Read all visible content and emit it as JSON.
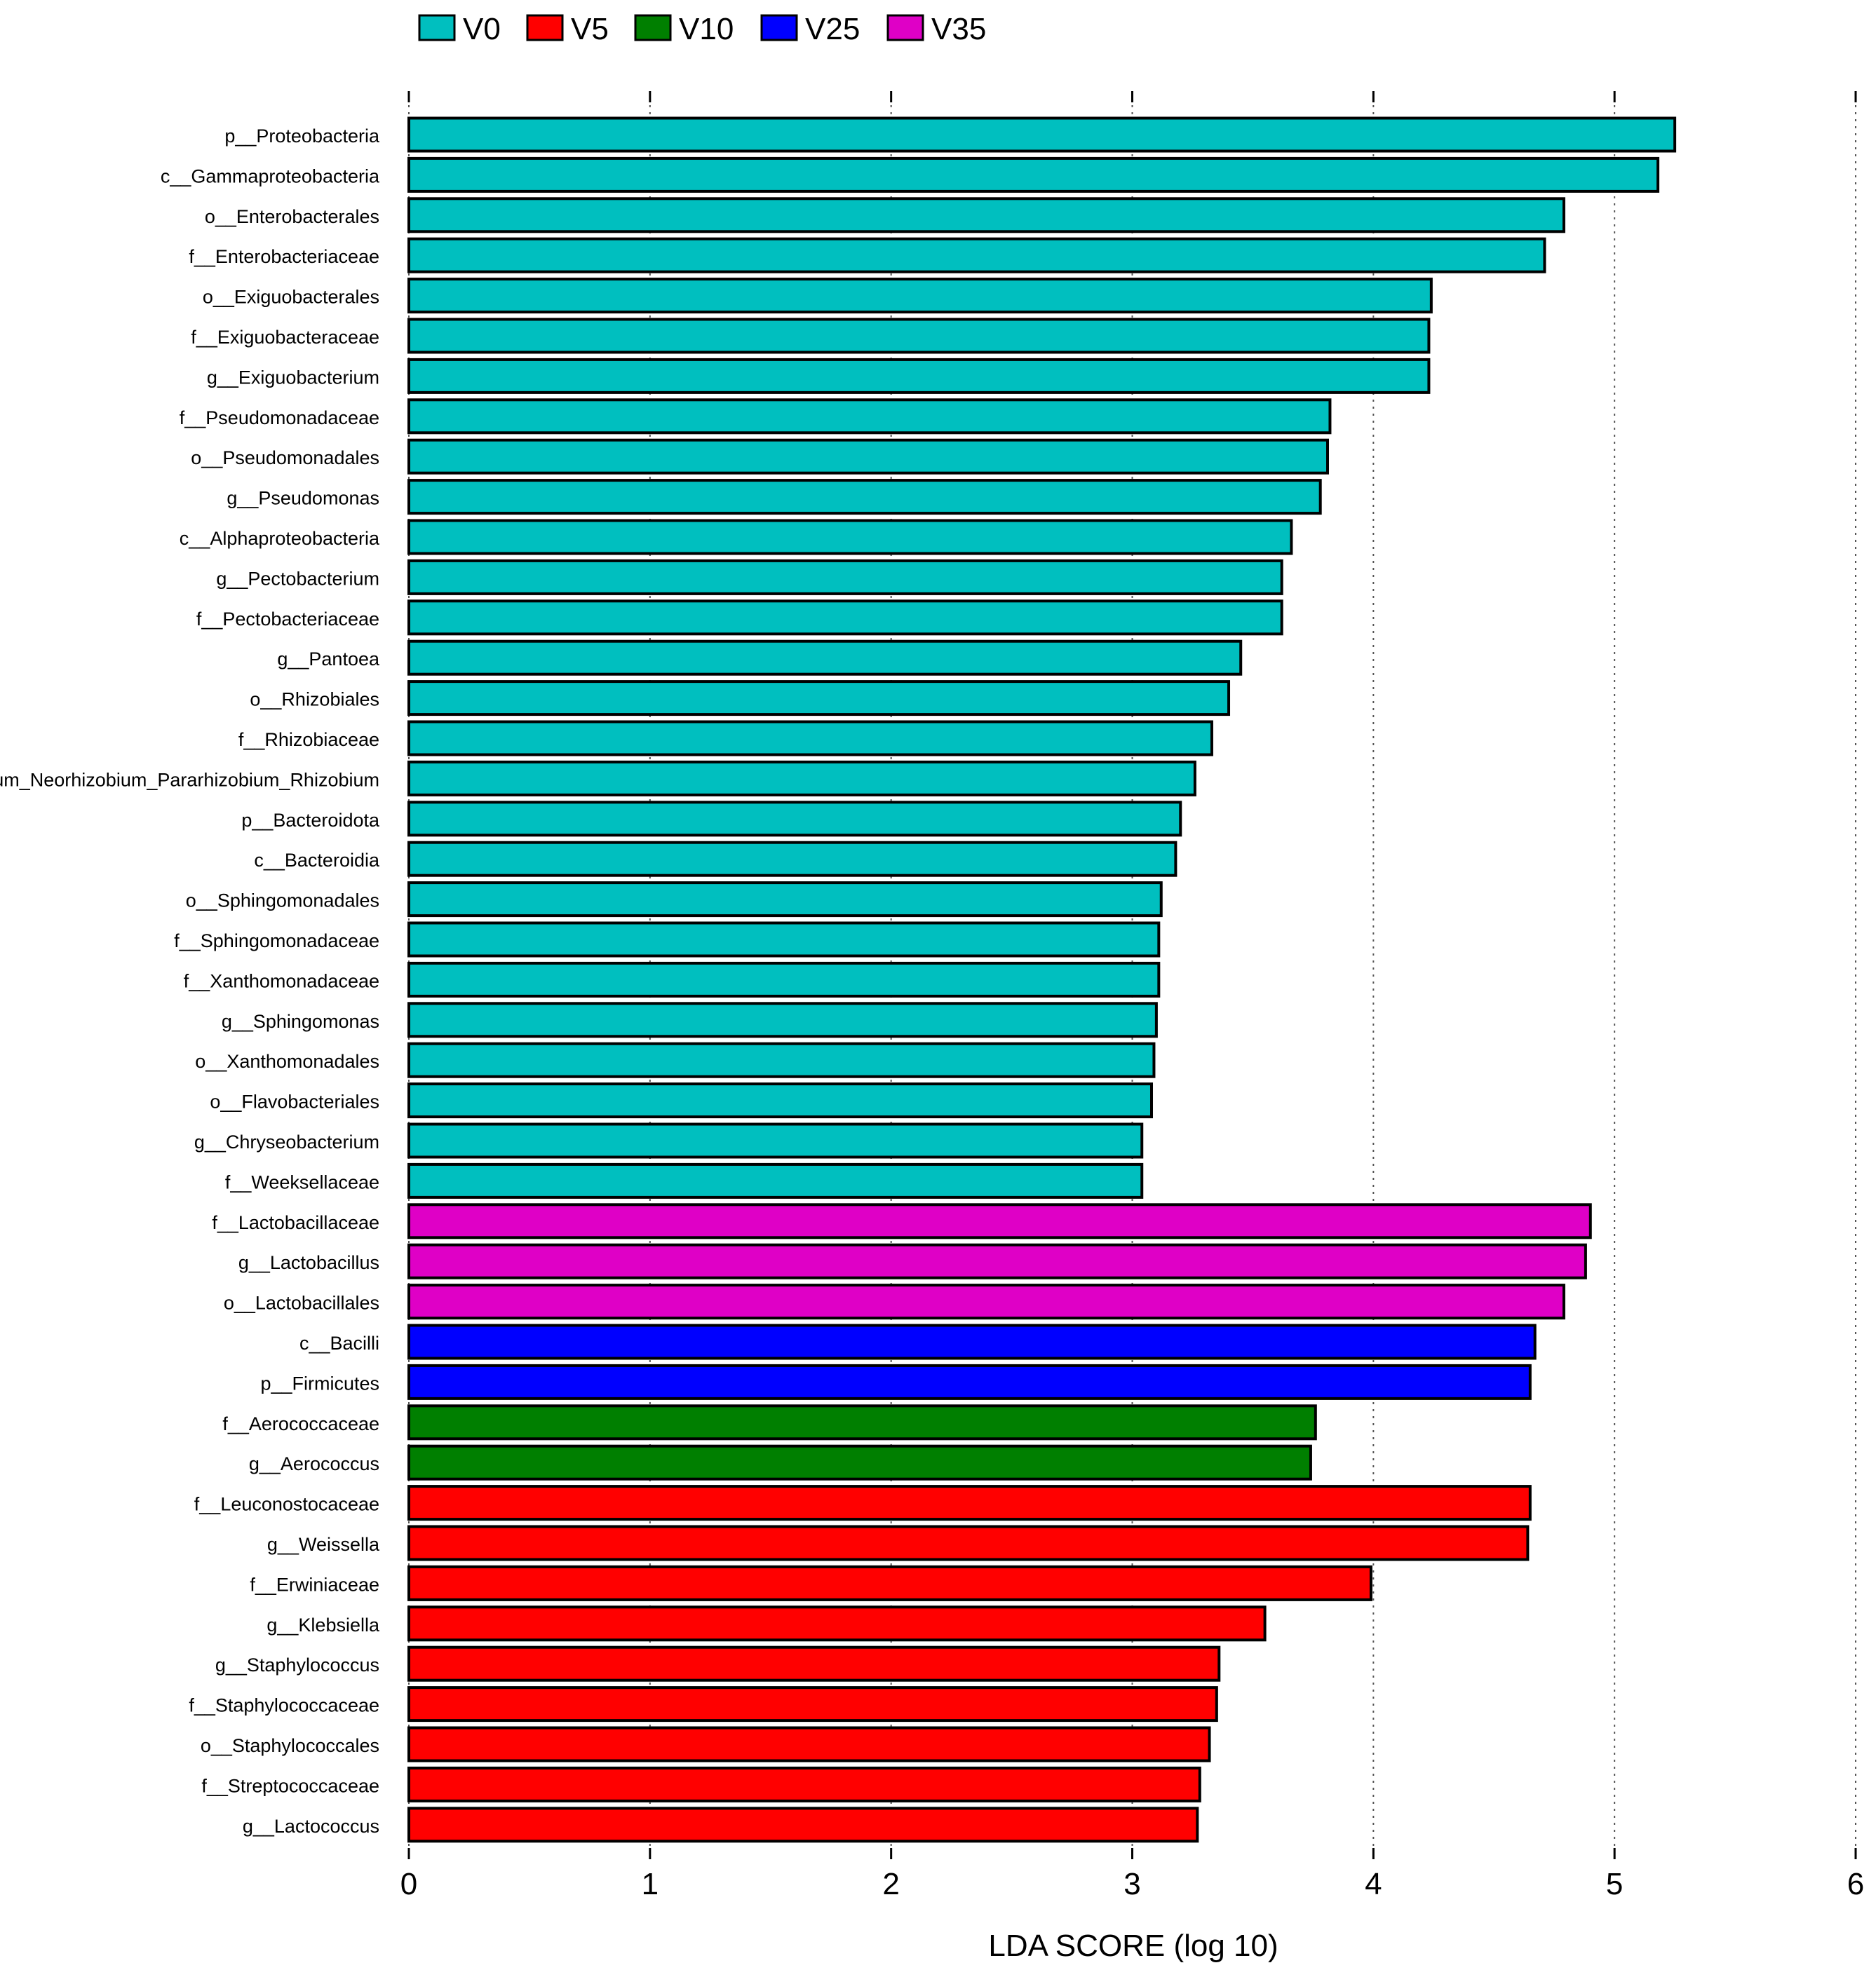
{
  "chart_data": {
    "type": "bar",
    "orientation": "horizontal",
    "xlabel": "LDA SCORE (log 10)",
    "xlim": [
      0,
      6
    ],
    "xticks": [
      0,
      1,
      2,
      3,
      4,
      5,
      6
    ],
    "grid": "vertical dotted",
    "legend_position": "top-left",
    "legend": [
      {
        "name": "V0",
        "color": "#00BFBF"
      },
      {
        "name": "V5",
        "color": "#FF0000"
      },
      {
        "name": "V10",
        "color": "#007F00"
      },
      {
        "name": "V25",
        "color": "#0000FF"
      },
      {
        "name": "V35",
        "color": "#DF00C6"
      }
    ],
    "bars": [
      {
        "label": "p__Proteobacteria",
        "value": 5.25,
        "group": "V0"
      },
      {
        "label": "c__Gammaproteobacteria",
        "value": 5.18,
        "group": "V0"
      },
      {
        "label": "o__Enterobacterales",
        "value": 4.79,
        "group": "V0"
      },
      {
        "label": "f__Enterobacteriaceae",
        "value": 4.71,
        "group": "V0"
      },
      {
        "label": "o__Exiguobacterales",
        "value": 4.24,
        "group": "V0"
      },
      {
        "label": "f__Exiguobacteraceae",
        "value": 4.23,
        "group": "V0"
      },
      {
        "label": "g__Exiguobacterium",
        "value": 4.23,
        "group": "V0"
      },
      {
        "label": "f__Pseudomonadaceae",
        "value": 3.82,
        "group": "V0"
      },
      {
        "label": "o__Pseudomonadales",
        "value": 3.81,
        "group": "V0"
      },
      {
        "label": "g__Pseudomonas",
        "value": 3.78,
        "group": "V0"
      },
      {
        "label": "c__Alphaproteobacteria",
        "value": 3.66,
        "group": "V0"
      },
      {
        "label": "g__Pectobacterium",
        "value": 3.62,
        "group": "V0"
      },
      {
        "label": "f__Pectobacteriaceae",
        "value": 3.62,
        "group": "V0"
      },
      {
        "label": "g__Pantoea",
        "value": 3.45,
        "group": "V0"
      },
      {
        "label": "o__Rhizobiales",
        "value": 3.4,
        "group": "V0"
      },
      {
        "label": "f__Rhizobiaceae",
        "value": 3.33,
        "group": "V0"
      },
      {
        "label": "g__Allorhizobium_Neorhizobium_Pararhizobium_Rhizobium",
        "value": 3.26,
        "group": "V0"
      },
      {
        "label": "p__Bacteroidota",
        "value": 3.2,
        "group": "V0"
      },
      {
        "label": "c__Bacteroidia",
        "value": 3.18,
        "group": "V0"
      },
      {
        "label": "o__Sphingomonadales",
        "value": 3.12,
        "group": "V0"
      },
      {
        "label": "f__Sphingomonadaceae",
        "value": 3.11,
        "group": "V0"
      },
      {
        "label": "f__Xanthomonadaceae",
        "value": 3.11,
        "group": "V0"
      },
      {
        "label": "g__Sphingomonas",
        "value": 3.1,
        "group": "V0"
      },
      {
        "label": "o__Xanthomonadales",
        "value": 3.09,
        "group": "V0"
      },
      {
        "label": "o__Flavobacteriales",
        "value": 3.08,
        "group": "V0"
      },
      {
        "label": "g__Chryseobacterium",
        "value": 3.04,
        "group": "V0"
      },
      {
        "label": "f__Weeksellaceae",
        "value": 3.04,
        "group": "V0"
      },
      {
        "label": "f__Lactobacillaceae",
        "value": 4.9,
        "group": "V35"
      },
      {
        "label": "g__Lactobacillus",
        "value": 4.88,
        "group": "V35"
      },
      {
        "label": "o__Lactobacillales",
        "value": 4.79,
        "group": "V35"
      },
      {
        "label": "c__Bacilli",
        "value": 4.67,
        "group": "V25"
      },
      {
        "label": "p__Firmicutes",
        "value": 4.65,
        "group": "V25"
      },
      {
        "label": "f__Aerococcaceae",
        "value": 3.76,
        "group": "V10"
      },
      {
        "label": "g__Aerococcus",
        "value": 3.74,
        "group": "V10"
      },
      {
        "label": "f__Leuconostocaceae",
        "value": 4.65,
        "group": "V5"
      },
      {
        "label": "g__Weissella",
        "value": 4.64,
        "group": "V5"
      },
      {
        "label": "f__Erwiniaceae",
        "value": 3.99,
        "group": "V5"
      },
      {
        "label": "g__Klebsiella",
        "value": 3.55,
        "group": "V5"
      },
      {
        "label": "g__Staphylococcus",
        "value": 3.36,
        "group": "V5"
      },
      {
        "label": "f__Staphylococcaceae",
        "value": 3.35,
        "group": "V5"
      },
      {
        "label": "o__Staphylococcales",
        "value": 3.32,
        "group": "V5"
      },
      {
        "label": "f__Streptococcaceae",
        "value": 3.28,
        "group": "V5"
      },
      {
        "label": "g__Lactococcus",
        "value": 3.27,
        "group": "V5"
      }
    ]
  }
}
